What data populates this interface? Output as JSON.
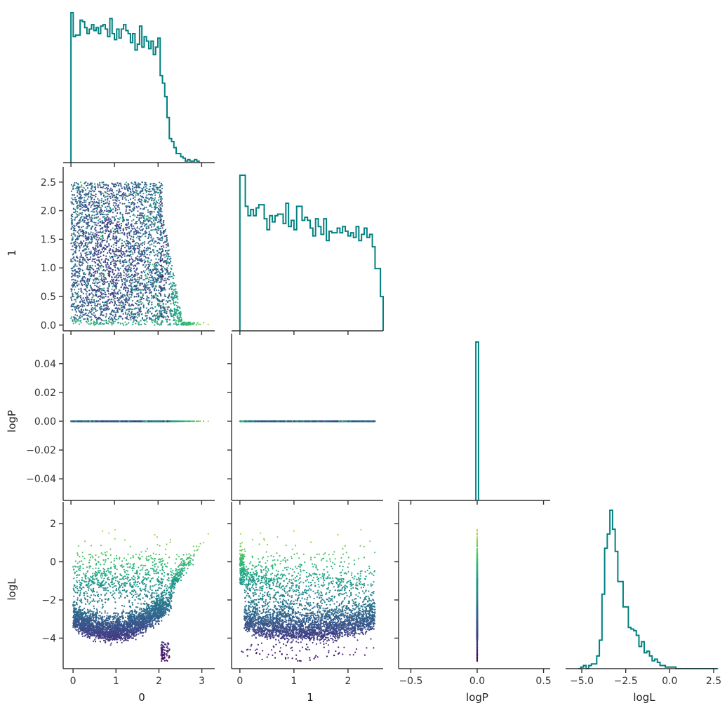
{
  "chart_data": {
    "type": "corner",
    "variables": [
      "0",
      "1",
      "logP",
      "logL"
    ],
    "histogram_color": "#008080",
    "scatter_colormap": "viridis",
    "color_variable": "logL",
    "ranges": {
      "0": [
        0.0,
        3.15
      ],
      "1": [
        0.0,
        2.5
      ],
      "logP": [
        -0.5,
        0.5
      ],
      "logL": [
        -5.4,
        2.6
      ]
    },
    "panels": [
      {
        "id": "hist-0",
        "kind": "histogram",
        "x": "0",
        "xlim": [
          -0.05,
          3.3
        ],
        "bins": {
          "start": 0.0,
          "width": 0.0525,
          "counts": [
            100,
            84,
            85,
            85,
            95,
            94,
            90,
            86,
            89,
            92,
            88,
            90,
            86,
            91,
            92,
            89,
            84,
            96,
            86,
            82,
            89,
            83,
            89,
            92,
            88,
            86,
            80,
            86,
            75,
            79,
            91,
            77,
            84,
            81,
            76,
            81,
            72,
            77,
            83,
            58,
            53,
            44,
            30,
            16,
            14,
            10,
            6,
            6,
            4,
            3,
            1,
            2,
            1,
            1,
            2,
            1
          ]
        }
      },
      {
        "id": "scatter-0-1",
        "kind": "scatter",
        "x": "0",
        "y": "1",
        "xlim": [
          -0.05,
          3.3
        ],
        "ylim": [
          -0.1,
          2.62
        ],
        "y_ticks": [
          0.0,
          0.5,
          1.0,
          1.5,
          2.0,
          2.5
        ],
        "y_tick_labels": [
          "0.0",
          "0.5",
          "1.0",
          "1.5",
          "2.0",
          "2.5"
        ],
        "y_label": "1"
      },
      {
        "id": "hist-1",
        "kind": "histogram",
        "x": "1",
        "xlim": [
          -0.05,
          2.65
        ],
        "bins": {
          "start": 0.0,
          "width": 0.05,
          "counts": [
            100,
            100,
            80,
            74,
            78,
            74,
            79,
            81,
            81,
            72,
            65,
            74,
            70,
            74,
            75,
            75,
            69,
            82,
            67,
            71,
            65,
            80,
            80,
            71,
            73,
            71,
            66,
            61,
            72,
            67,
            62,
            72,
            58,
            64,
            63,
            63,
            66,
            63,
            67,
            64,
            61,
            63,
            60,
            67,
            58,
            62,
            66,
            60,
            62,
            54,
            40,
            40,
            22
          ]
        }
      },
      {
        "id": "scatter-0-logP",
        "kind": "scatter",
        "x": "0",
        "y": "logP",
        "xlim": [
          -0.05,
          3.3
        ],
        "ylim": [
          -0.055,
          0.055
        ],
        "y_ticks": [
          -0.04,
          -0.02,
          0.0,
          0.02,
          0.04
        ],
        "y_tick_labels": [
          "−0.04",
          "−0.02",
          "0.00",
          "0.02",
          "0.04"
        ],
        "y_label": "logP"
      },
      {
        "id": "scatter-1-logP",
        "kind": "scatter",
        "x": "1",
        "y": "logP",
        "xlim": [
          -0.05,
          2.65
        ],
        "ylim": [
          -0.055,
          0.055
        ]
      },
      {
        "id": "hist-logP",
        "kind": "histogram",
        "x": "logP",
        "xlim": [
          -0.55,
          0.55
        ],
        "bins": {
          "start": -0.01,
          "width": 0.02,
          "counts": [
            100
          ]
        }
      },
      {
        "id": "scatter-0-logL",
        "kind": "scatter",
        "x": "0",
        "y": "logL",
        "xlim": [
          -0.1,
          3.3
        ],
        "ylim": [
          -5.6,
          2.7
        ],
        "x_ticks": [
          0,
          1,
          2,
          3
        ],
        "x_tick_labels": [
          "0",
          "1",
          "2",
          "3"
        ],
        "y_ticks": [
          -4,
          -2,
          0,
          2
        ],
        "y_tick_labels": [
          "−4",
          "−2",
          "0",
          "2"
        ],
        "x_label": "0",
        "y_label": "logL"
      },
      {
        "id": "scatter-1-logL",
        "kind": "scatter",
        "x": "1",
        "y": "logL",
        "xlim": [
          -0.05,
          2.65
        ],
        "ylim": [
          -5.6,
          2.7
        ],
        "x_ticks": [
          0,
          1,
          2
        ],
        "x_tick_labels": [
          "0",
          "1",
          "2"
        ],
        "x_label": "1"
      },
      {
        "id": "scatter-logP-logL",
        "kind": "scatter",
        "x": "logP",
        "y": "logL",
        "xlim": [
          -0.55,
          0.55
        ],
        "ylim": [
          -5.6,
          2.7
        ],
        "x_ticks": [
          -0.5,
          0.0,
          0.5
        ],
        "x_tick_labels": [
          "−0.5",
          "0.0",
          "0.5"
        ],
        "x_label": "logP"
      },
      {
        "id": "hist-logL",
        "kind": "histogram",
        "x": "logL",
        "xlim": [
          -5.6,
          2.7
        ],
        "x_ticks": [
          -5.0,
          -2.5,
          0.0,
          2.5
        ],
        "x_tick_labels": [
          "−5.0",
          "−2.5",
          "0.0",
          "2.5"
        ],
        "x_label": "logL",
        "bins": {
          "start": -5.2,
          "width": 0.15,
          "counts": [
            0,
            1,
            2,
            0,
            2,
            3,
            3,
            8,
            18,
            47,
            76,
            85,
            100,
            88,
            74,
            55,
            55,
            39,
            39,
            26,
            25,
            24,
            21,
            14,
            17,
            10,
            11,
            8,
            5,
            6,
            4,
            2,
            2,
            1,
            1,
            1,
            1,
            0,
            0,
            0,
            0,
            0,
            0,
            0,
            0,
            0,
            0,
            0,
            0,
            0,
            0,
            0,
            0
          ]
        }
      }
    ]
  }
}
